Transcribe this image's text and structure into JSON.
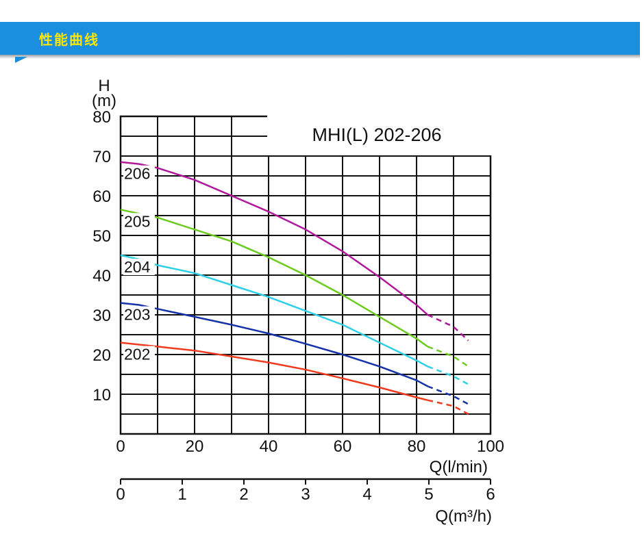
{
  "header": {
    "title": "性能曲线",
    "color": "#1a8fe0",
    "title_color": "#ffe600"
  },
  "chart_data": {
    "type": "line",
    "title": "MHI(L) 202-206",
    "ylabel_top": "H",
    "ylabel_unit": "(m)",
    "xlabel": "Q(l/min)",
    "x2label": "Q(m³/h)",
    "xlim": [
      0,
      100
    ],
    "ylim": [
      0,
      80
    ],
    "x2lim": [
      0,
      6
    ],
    "y_ticks": [
      "80",
      "70",
      "60",
      "50",
      "40",
      "30",
      "20",
      "10"
    ],
    "x_ticks": [
      "0",
      "20",
      "40",
      "60",
      "80",
      "100"
    ],
    "x2_ticks": [
      "0",
      "1",
      "2",
      "3",
      "4",
      "5",
      "6"
    ],
    "grid": true,
    "series": [
      {
        "name": "206",
        "color": "#b0179a",
        "solid_until": 83,
        "x": [
          0,
          5,
          10,
          20,
          30,
          40,
          50,
          60,
          70,
          80,
          83,
          90,
          94
        ],
        "y": [
          68.5,
          68,
          67,
          64,
          60,
          56,
          51.5,
          46,
          39.5,
          32.5,
          30,
          27,
          23.5
        ]
      },
      {
        "name": "205",
        "color": "#6ccb1e",
        "solid_until": 83,
        "x": [
          0,
          5,
          10,
          20,
          30,
          40,
          50,
          60,
          70,
          80,
          83,
          90,
          94
        ],
        "y": [
          56.5,
          55.5,
          54.5,
          51.5,
          48.5,
          44.5,
          40,
          35,
          29.5,
          24,
          22,
          19.5,
          17
        ]
      },
      {
        "name": "204",
        "color": "#2fd0e6",
        "solid_until": 83,
        "x": [
          0,
          5,
          10,
          20,
          30,
          40,
          50,
          60,
          70,
          80,
          83,
          90,
          94
        ],
        "y": [
          45,
          44,
          42.5,
          40.5,
          37.5,
          34.5,
          31,
          27.5,
          23,
          18.5,
          17,
          14.5,
          12.5
        ]
      },
      {
        "name": "203",
        "color": "#1632a8",
        "solid_until": 83,
        "x": [
          0,
          5,
          10,
          20,
          30,
          40,
          50,
          60,
          70,
          80,
          83,
          90,
          94
        ],
        "y": [
          33,
          32.5,
          31.5,
          29.5,
          27.5,
          25.3,
          22.7,
          20,
          17,
          13.5,
          12,
          9.5,
          7.5
        ]
      },
      {
        "name": "202",
        "color": "#f03a1e",
        "solid_until": 83,
        "x": [
          0,
          5,
          10,
          20,
          30,
          40,
          50,
          60,
          70,
          80,
          83,
          90,
          94
        ],
        "y": [
          23,
          22.5,
          22,
          21,
          19.5,
          18,
          16.2,
          14,
          11.7,
          9.2,
          8.5,
          7,
          5
        ]
      }
    ]
  }
}
